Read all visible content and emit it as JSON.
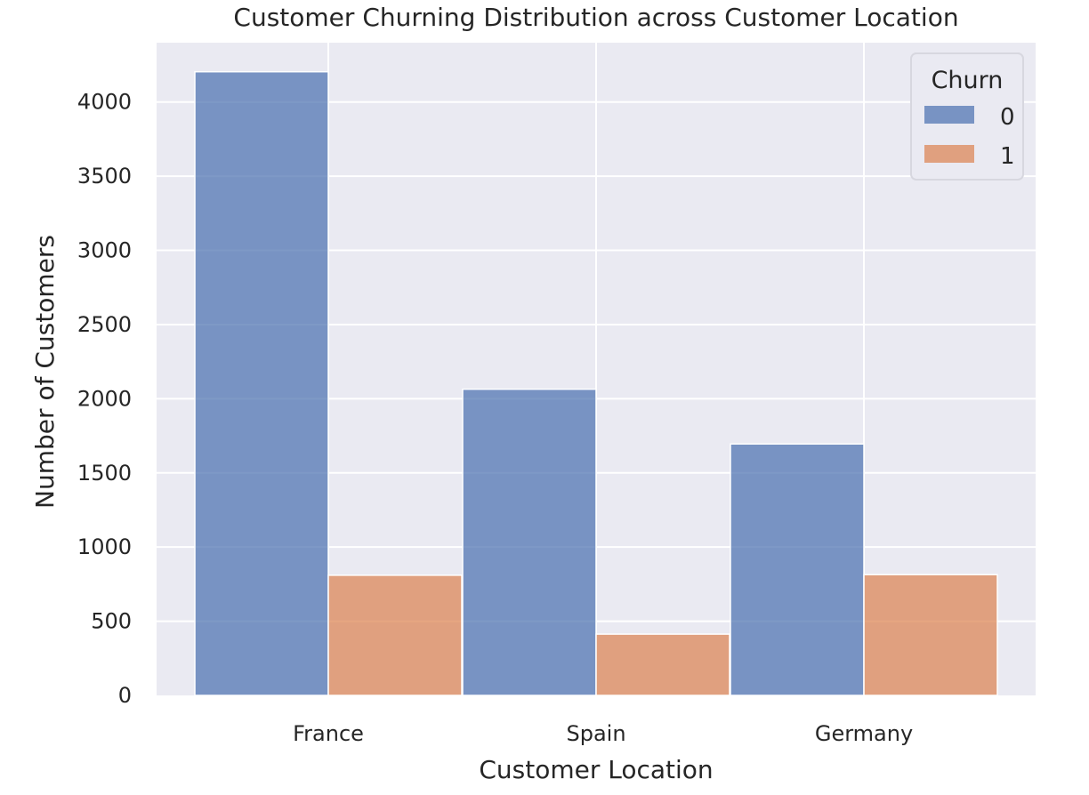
{
  "chart_data": {
    "type": "bar",
    "title": "Customer Churning Distribution across Customer Location",
    "xlabel": "Customer Location",
    "ylabel": "Number of Customers",
    "categories": [
      "France",
      "Spain",
      "Germany"
    ],
    "series": [
      {
        "name": "0",
        "values": [
          4204,
          2064,
          1695
        ],
        "color": "#4c72b0"
      },
      {
        "name": "1",
        "values": [
          810,
          413,
          814
        ],
        "color": "#dd8452"
      }
    ],
    "ylim": [
      0,
      4400
    ],
    "yticks": [
      0,
      500,
      1000,
      1500,
      2000,
      2500,
      3000,
      3500,
      4000
    ],
    "legend": {
      "title": "Churn",
      "position": "top-right"
    },
    "grid": true,
    "background": "#eaeaf2",
    "gridColor": "#ffffff"
  }
}
